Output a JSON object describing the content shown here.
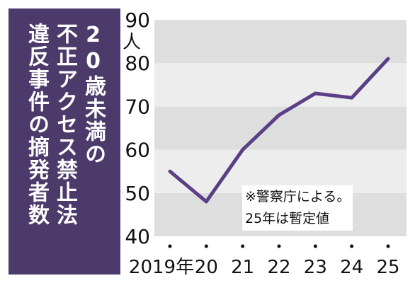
{
  "title": {
    "col1": "20歳未満の",
    "col2": "不正アクセス禁止法",
    "col3": "違反事件の摘発者数"
  },
  "note": {
    "line1": "※警察庁による。",
    "line2": "25年は暫定値"
  },
  "colors": {
    "title_bg": "#4b3a6a",
    "line": "#5b3f86",
    "band_dark": "#dedede",
    "band_light": "#ededed"
  },
  "chart_data": {
    "type": "line",
    "categories": [
      "2019年",
      "20",
      "21",
      "22",
      "23",
      "24",
      "25"
    ],
    "series": [
      {
        "values": [
          55,
          48,
          60,
          68,
          73,
          72,
          81
        ]
      }
    ],
    "ylim": [
      40,
      90
    ],
    "yticks": [
      40,
      50,
      60,
      70,
      80,
      90
    ],
    "yticklabels": [
      "40",
      "50",
      "60",
      "70",
      "80",
      "90"
    ],
    "yunit": "人",
    "grid": "alternating bands"
  }
}
